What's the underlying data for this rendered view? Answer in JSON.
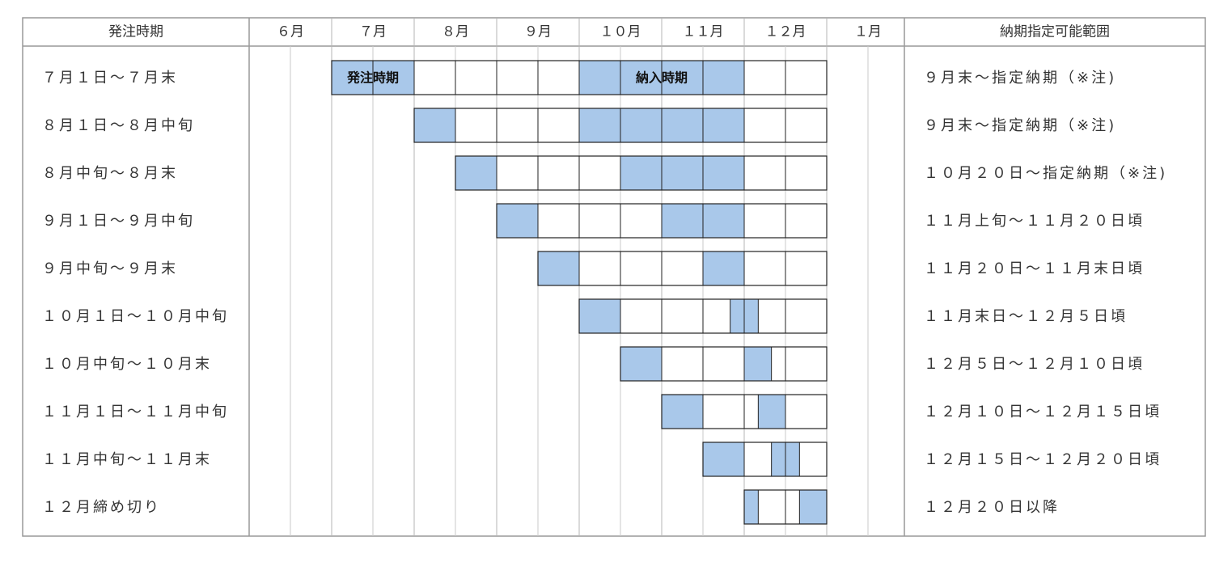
{
  "chart_data": {
    "type": "table",
    "header": {
      "order_period": "発注時期",
      "months": [
        "６月",
        "７月",
        "８月",
        "９月",
        "１０月",
        "１１月",
        "１２月",
        "１月"
      ],
      "delivery_range": "納期指定可能範囲"
    },
    "legend_labels": {
      "order": "発注時期",
      "delivery": "納入時期"
    },
    "fill_color": "#a9c8ea",
    "rows": [
      {
        "label": "７月１日～７月末",
        "range": "９月末～指定納期（※注)",
        "order": [
          1.0,
          2.0
        ],
        "delivery": [
          4.0,
          6.0
        ],
        "box": [
          1.0,
          7.0
        ]
      },
      {
        "label": "８月１日～８月中旬",
        "range": "９月末～指定納期（※注)",
        "order": [
          2.0,
          2.5
        ],
        "delivery": [
          4.0,
          6.0
        ],
        "box": [
          2.0,
          7.0
        ]
      },
      {
        "label": "８月中旬～８月末",
        "range": "１０月２０日～指定納期（※注)",
        "order": [
          2.5,
          3.0
        ],
        "delivery": [
          4.5,
          6.0
        ],
        "box": [
          2.5,
          7.0
        ]
      },
      {
        "label": "９月１日～９月中旬",
        "range": "１１月上旬～１１月２０日頃",
        "order": [
          3.0,
          3.5
        ],
        "delivery": [
          5.0,
          6.0
        ],
        "box": [
          3.0,
          7.0
        ]
      },
      {
        "label": "９月中旬～９月末",
        "range": "１１月２０日～１１月末日頃",
        "order": [
          3.5,
          4.0
        ],
        "delivery": [
          5.5,
          6.0
        ],
        "box": [
          3.5,
          7.0
        ]
      },
      {
        "label": "１０月１日～１０月中旬",
        "range": "１１月末日～１２月５日頃",
        "order": [
          4.0,
          4.5
        ],
        "delivery": [
          5.83,
          6.17
        ],
        "box": [
          4.0,
          7.0
        ]
      },
      {
        "label": "１０月中旬～１０月末",
        "range": "１２月５日～１２月１０日頃",
        "order": [
          4.5,
          5.0
        ],
        "delivery": [
          6.0,
          6.33
        ],
        "box": [
          4.5,
          7.0
        ]
      },
      {
        "label": "１１月１日～１１月中旬",
        "range": "１２月１０日～１２月１５日頃",
        "order": [
          5.0,
          5.5
        ],
        "delivery": [
          6.17,
          6.5
        ],
        "box": [
          5.0,
          7.0
        ]
      },
      {
        "label": "１１月中旬～１１月末",
        "range": "１２月１５日～１２月２０日頃",
        "order": [
          5.5,
          6.0
        ],
        "delivery": [
          6.33,
          6.67
        ],
        "box": [
          5.5,
          7.0
        ]
      },
      {
        "label": "１２月締め切り",
        "range": "１２月２０日以降",
        "order": [
          6.0,
          6.17
        ],
        "delivery": [
          6.67,
          7.0
        ],
        "box": [
          6.0,
          7.0
        ]
      }
    ]
  }
}
